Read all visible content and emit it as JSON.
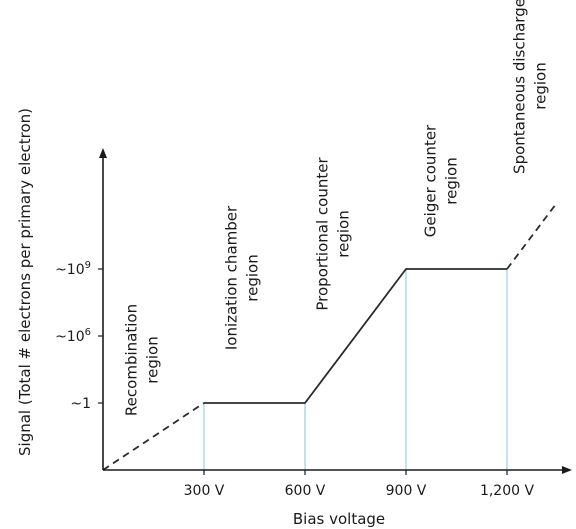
{
  "chart_data": {
    "type": "line",
    "title": "",
    "xlabel": "Bias voltage",
    "ylabel": "Signal (Total # electrons per primary electron)",
    "x_ticks": [
      {
        "value": 300,
        "label": "300 V"
      },
      {
        "value": 600,
        "label": "600 V"
      },
      {
        "value": 900,
        "label": "900 V"
      },
      {
        "value": 1200,
        "label": "1,200 V"
      }
    ],
    "y_ticks": [
      {
        "level": 1,
        "base": "~1",
        "exp": ""
      },
      {
        "level": 2,
        "base": "~10",
        "exp": "6"
      },
      {
        "level": 3,
        "base": "~10",
        "exp": "9"
      }
    ],
    "xlim": [
      0,
      1400
    ],
    "ylim": [
      0,
      4
    ],
    "series": [
      {
        "style": "dashed",
        "points": [
          [
            0,
            0
          ],
          [
            300,
            1
          ]
        ]
      },
      {
        "style": "solid",
        "points": [
          [
            300,
            1
          ],
          [
            600,
            1
          ],
          [
            900,
            3
          ],
          [
            1200,
            3
          ]
        ]
      },
      {
        "style": "dashed",
        "points": [
          [
            1200,
            3
          ],
          [
            1350,
            4
          ]
        ]
      }
    ],
    "region_boundaries": [
      300,
      600,
      900,
      1200
    ],
    "regions": [
      {
        "lines": [
          "Recombination",
          "region"
        ],
        "x": 150
      },
      {
        "lines": [
          "Ionization chamber",
          "region"
        ],
        "x": 450
      },
      {
        "lines": [
          "Proportional counter",
          "region"
        ],
        "x": 750
      },
      {
        "lines": [
          "Geiger counter",
          "region"
        ],
        "x": 1050
      },
      {
        "lines": [
          "Spontaneous discharge",
          "region"
        ],
        "x": 1310
      }
    ],
    "colors": {
      "line": "#2b2b2b",
      "boundary": "#9fd3ea",
      "axis": "#1a1a1a"
    },
    "grid": false
  }
}
